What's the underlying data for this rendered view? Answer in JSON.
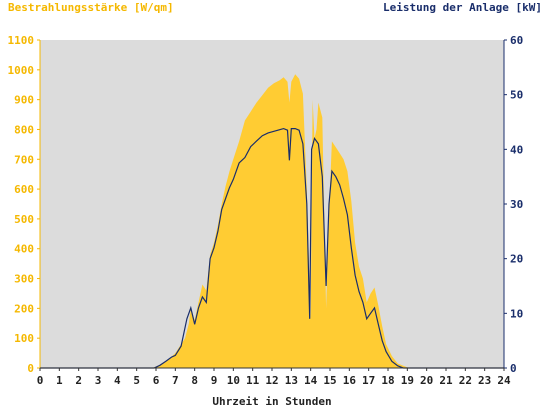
{
  "chart_data": {
    "type": "area",
    "left_axis_label": "Bestrahlungsstärke [W/qm]",
    "right_axis_label": "Leistung der Anlage [kW]",
    "xlabel": "Uhrzeit in Stunden",
    "xlim": [
      0,
      24
    ],
    "x_ticks": [
      "0",
      "1",
      "2",
      "3",
      "4",
      "5",
      "6",
      "7",
      "8",
      "9",
      "10",
      "11",
      "12",
      "13",
      "14",
      "15",
      "16",
      "17",
      "18",
      "19",
      "20",
      "21",
      "22",
      "23",
      "24"
    ],
    "ylim_left": [
      0,
      1100
    ],
    "y_ticks_left": [
      "0",
      "100",
      "200",
      "300",
      "400",
      "500",
      "600",
      "700",
      "800",
      "900",
      "1000",
      "1100"
    ],
    "ylim_right": [
      0,
      60
    ],
    "y_ticks_right": [
      "0",
      "10",
      "20",
      "30",
      "40",
      "50",
      "60"
    ],
    "grid": false,
    "colors": {
      "background": "#dcdcdc",
      "irradiance": "#ffcc33",
      "power": "#1a2e6b",
      "left_axis_text": "#f5b800",
      "right_axis_text": "#1a2e6b"
    },
    "series": [
      {
        "name": "Bestrahlungsstärke",
        "axis": "left",
        "style": "area",
        "points": [
          [
            0,
            0
          ],
          [
            5.8,
            0
          ],
          [
            6.0,
            5
          ],
          [
            6.5,
            20
          ],
          [
            7.0,
            50
          ],
          [
            7.5,
            100
          ],
          [
            7.7,
            150
          ],
          [
            7.8,
            200
          ],
          [
            8.0,
            160
          ],
          [
            8.2,
            220
          ],
          [
            8.4,
            280
          ],
          [
            8.6,
            260
          ],
          [
            8.8,
            380
          ],
          [
            9.0,
            420
          ],
          [
            9.2,
            480
          ],
          [
            9.4,
            550
          ],
          [
            9.6,
            610
          ],
          [
            9.8,
            660
          ],
          [
            10.0,
            700
          ],
          [
            10.3,
            760
          ],
          [
            10.6,
            830
          ],
          [
            10.9,
            860
          ],
          [
            11.2,
            890
          ],
          [
            11.5,
            915
          ],
          [
            11.8,
            940
          ],
          [
            12.1,
            955
          ],
          [
            12.4,
            965
          ],
          [
            12.6,
            975
          ],
          [
            12.8,
            960
          ],
          [
            12.9,
            890
          ],
          [
            13.0,
            960
          ],
          [
            13.2,
            985
          ],
          [
            13.4,
            970
          ],
          [
            13.6,
            920
          ],
          [
            13.8,
            600
          ],
          [
            14.0,
            160
          ],
          [
            14.1,
            900
          ],
          [
            14.2,
            770
          ],
          [
            14.3,
            800
          ],
          [
            14.4,
            890
          ],
          [
            14.6,
            840
          ],
          [
            14.8,
            200
          ],
          [
            14.95,
            520
          ],
          [
            15.1,
            760
          ],
          [
            15.3,
            740
          ],
          [
            15.5,
            720
          ],
          [
            15.7,
            700
          ],
          [
            15.9,
            660
          ],
          [
            16.1,
            560
          ],
          [
            16.3,
            420
          ],
          [
            16.5,
            340
          ],
          [
            16.7,
            300
          ],
          [
            16.9,
            220
          ],
          [
            17.1,
            250
          ],
          [
            17.3,
            270
          ],
          [
            17.5,
            210
          ],
          [
            17.7,
            140
          ],
          [
            17.9,
            80
          ],
          [
            18.2,
            40
          ],
          [
            18.5,
            15
          ],
          [
            19.0,
            2
          ],
          [
            19.2,
            0
          ],
          [
            24,
            0
          ]
        ]
      },
      {
        "name": "Leistung der Anlage",
        "axis": "right",
        "style": "line",
        "points": [
          [
            0,
            0
          ],
          [
            5.9,
            0
          ],
          [
            6.2,
            0.5
          ],
          [
            6.5,
            1.2
          ],
          [
            6.8,
            2
          ],
          [
            7.0,
            2.3
          ],
          [
            7.3,
            4
          ],
          [
            7.6,
            9
          ],
          [
            7.8,
            11
          ],
          [
            8.0,
            8
          ],
          [
            8.2,
            11
          ],
          [
            8.4,
            13
          ],
          [
            8.6,
            12
          ],
          [
            8.8,
            20
          ],
          [
            9.0,
            22
          ],
          [
            9.2,
            25
          ],
          [
            9.4,
            29
          ],
          [
            9.6,
            31
          ],
          [
            9.8,
            33
          ],
          [
            10.0,
            34.5
          ],
          [
            10.3,
            37.5
          ],
          [
            10.6,
            38.5
          ],
          [
            10.9,
            40.5
          ],
          [
            11.2,
            41.5
          ],
          [
            11.5,
            42.5
          ],
          [
            11.8,
            43
          ],
          [
            12.1,
            43.3
          ],
          [
            12.4,
            43.6
          ],
          [
            12.6,
            43.8
          ],
          [
            12.8,
            43.5
          ],
          [
            12.9,
            38
          ],
          [
            13.0,
            43.8
          ],
          [
            13.2,
            43.8
          ],
          [
            13.4,
            43.5
          ],
          [
            13.6,
            41
          ],
          [
            13.8,
            30
          ],
          [
            13.95,
            9
          ],
          [
            14.05,
            40
          ],
          [
            14.2,
            42
          ],
          [
            14.4,
            41
          ],
          [
            14.6,
            35
          ],
          [
            14.8,
            15
          ],
          [
            14.95,
            30
          ],
          [
            15.1,
            36
          ],
          [
            15.3,
            35
          ],
          [
            15.5,
            33.5
          ],
          [
            15.7,
            31
          ],
          [
            15.9,
            28
          ],
          [
            16.1,
            22
          ],
          [
            16.3,
            17
          ],
          [
            16.5,
            14
          ],
          [
            16.7,
            12
          ],
          [
            16.9,
            9
          ],
          [
            17.1,
            10
          ],
          [
            17.3,
            11
          ],
          [
            17.5,
            8
          ],
          [
            17.7,
            5
          ],
          [
            17.9,
            3
          ],
          [
            18.2,
            1.2
          ],
          [
            18.5,
            0.4
          ],
          [
            18.8,
            0
          ],
          [
            24,
            0
          ]
        ]
      }
    ]
  }
}
